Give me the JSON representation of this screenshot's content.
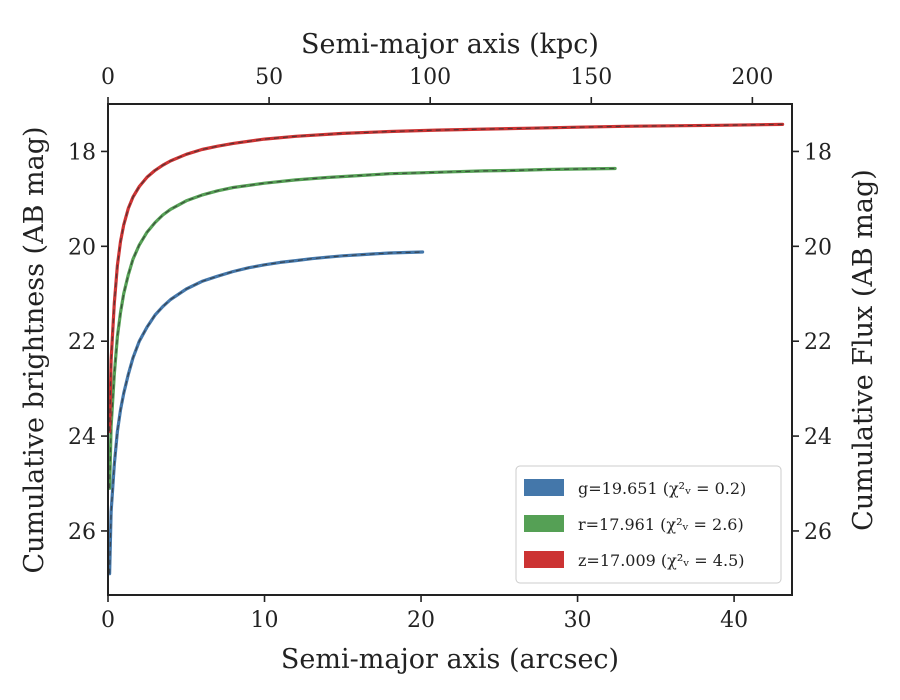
{
  "chart_data": {
    "type": "line",
    "xlabel": "Semi-major axis (arcsec)",
    "ylabel": "Cumulative brightness (AB mag)",
    "top_xlabel": "Semi-major axis (kpc)",
    "right_ylabel": "Cumulative Flux (AB mag)",
    "xlim": [
      0,
      43.7
    ],
    "ylim": [
      27.35,
      17.0
    ],
    "top_xlim": [
      0,
      212.3
    ],
    "y_inverted": true,
    "x_ticks": [
      0,
      10,
      20,
      30,
      40
    ],
    "y_ticks": [
      18,
      20,
      22,
      24,
      26
    ],
    "top_x_ticks": [
      0,
      50,
      100,
      150,
      200
    ],
    "grid": false,
    "legend_position": "lower-right",
    "series": [
      {
        "name": "g=19.651",
        "chi_label": "χ²ᵥ = 0.2",
        "color": "#4477aa",
        "x": [
          0.1,
          0.2,
          0.4,
          0.6,
          0.8,
          1.0,
          1.3,
          1.6,
          2.0,
          2.5,
          3.0,
          3.5,
          4.0,
          5.0,
          6.0,
          7.0,
          8.0,
          9.0,
          10.0,
          11.0,
          12.0,
          13.0,
          14.0,
          15.0,
          16.0,
          17.0,
          18.0,
          19.0,
          20.1
        ],
        "y": [
          26.9,
          25.6,
          24.6,
          23.9,
          23.45,
          23.1,
          22.7,
          22.35,
          22.0,
          21.7,
          21.45,
          21.27,
          21.12,
          20.9,
          20.74,
          20.63,
          20.53,
          20.45,
          20.39,
          20.34,
          20.3,
          20.26,
          20.23,
          20.2,
          20.18,
          20.16,
          20.14,
          20.13,
          20.12
        ]
      },
      {
        "name": "r=17.961",
        "chi_label": "χ²ᵥ = 2.6",
        "color": "#55a055",
        "x": [
          0.1,
          0.2,
          0.4,
          0.6,
          0.8,
          1.0,
          1.3,
          1.6,
          2.0,
          2.5,
          3.0,
          3.5,
          4.0,
          5.0,
          6.0,
          7.0,
          8.0,
          10.0,
          12.0,
          14.0,
          16.0,
          18.0,
          20.0,
          22.0,
          24.0,
          26.0,
          28.0,
          30.0,
          32.4
        ],
        "y": [
          25.1,
          23.8,
          22.7,
          21.9,
          21.4,
          21.0,
          20.6,
          20.27,
          19.97,
          19.7,
          19.5,
          19.34,
          19.22,
          19.04,
          18.92,
          18.83,
          18.76,
          18.67,
          18.6,
          18.55,
          18.51,
          18.47,
          18.45,
          18.43,
          18.41,
          18.4,
          18.38,
          18.37,
          18.36
        ]
      },
      {
        "name": "z=17.009",
        "chi_label": "χ²ᵥ = 4.5",
        "color": "#cc3333",
        "x": [
          0.1,
          0.2,
          0.4,
          0.6,
          0.8,
          1.0,
          1.3,
          1.6,
          2.0,
          2.5,
          3.0,
          3.5,
          4.0,
          5.0,
          6.0,
          7.0,
          8.0,
          10.0,
          12.0,
          15.0,
          18.0,
          21.0,
          24.0,
          27.0,
          30.0,
          33.0,
          36.0,
          39.0,
          43.1
        ],
        "y": [
          23.9,
          22.4,
          21.2,
          20.4,
          19.9,
          19.55,
          19.2,
          18.96,
          18.74,
          18.54,
          18.4,
          18.29,
          18.2,
          18.06,
          17.96,
          17.89,
          17.83,
          17.74,
          17.68,
          17.62,
          17.58,
          17.55,
          17.53,
          17.51,
          17.49,
          17.47,
          17.46,
          17.45,
          17.43
        ]
      }
    ]
  }
}
